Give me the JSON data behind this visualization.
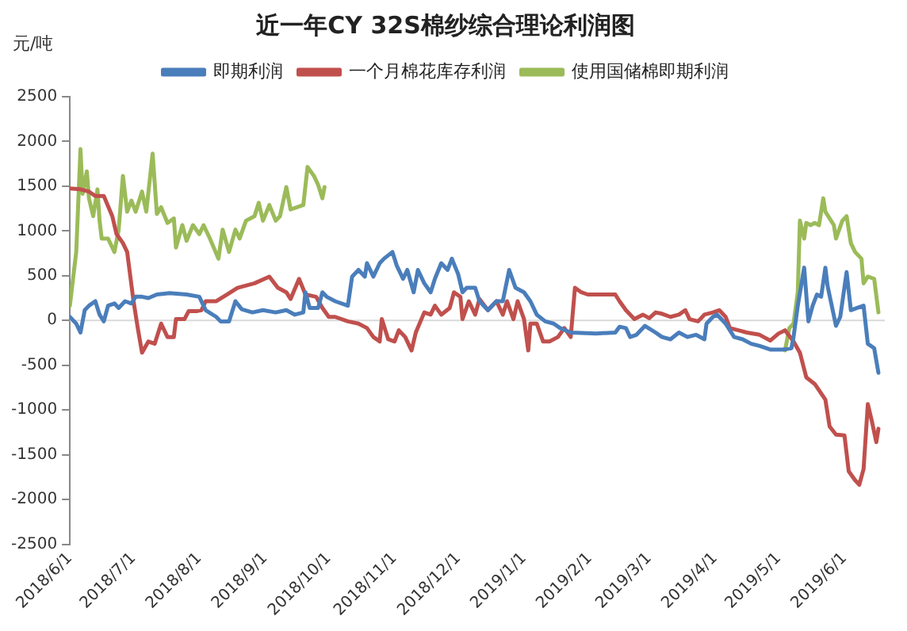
{
  "chart_data": {
    "type": "line",
    "title": "近一年CY 32S棉纱综合理论利润图",
    "ylabel": "元/吨",
    "xlim": [
      "2018-06-01",
      "2019-06-20"
    ],
    "xticks": [
      {
        "value": "2018-06-01",
        "label": "2018/6/1"
      },
      {
        "value": "2018-07-01",
        "label": "2018/7/1"
      },
      {
        "value": "2018-08-01",
        "label": "2018/8/1"
      },
      {
        "value": "2018-09-01",
        "label": "2018/9/1"
      },
      {
        "value": "2018-10-01",
        "label": "2018/10/1"
      },
      {
        "value": "2018-11-01",
        "label": "2018/11/1"
      },
      {
        "value": "2018-12-01",
        "label": "2018/12/1"
      },
      {
        "value": "2019-01-01",
        "label": "2019/1/1"
      },
      {
        "value": "2019-02-01",
        "label": "2019/2/1"
      },
      {
        "value": "2019-03-01",
        "label": "2019/3/1"
      },
      {
        "value": "2019-04-01",
        "label": "2019/4/1"
      },
      {
        "value": "2019-05-01",
        "label": "2019/5/1"
      },
      {
        "value": "2019-06-01",
        "label": "2019/6/1"
      }
    ],
    "ylim": [
      -2500,
      2500
    ],
    "yticks": [
      -2500,
      -2000,
      -1500,
      -1000,
      -500,
      0,
      500,
      1000,
      1500,
      2000,
      2500
    ],
    "grid": false,
    "ref_lines": [
      {
        "axis": "y",
        "value": 0,
        "color": "#d9d9d9"
      }
    ],
    "legend": "top",
    "marker": "none",
    "line_style": "solid",
    "series": [
      {
        "name": "即期利润",
        "color": "#4a7ebb",
        "x": [
          "2018-06-01",
          "2018-06-04",
          "2018-06-06",
          "2018-06-08",
          "2018-06-10",
          "2018-06-13",
          "2018-06-15",
          "2018-06-17",
          "2018-06-19",
          "2018-06-22",
          "2018-06-24",
          "2018-06-27",
          "2018-06-30",
          "2018-07-02",
          "2018-07-05",
          "2018-07-08",
          "2018-07-12",
          "2018-07-18",
          "2018-07-26",
          "2018-08-01",
          "2018-08-04",
          "2018-08-09",
          "2018-08-11",
          "2018-08-15",
          "2018-08-18",
          "2018-08-21",
          "2018-08-26",
          "2018-08-31",
          "2018-09-06",
          "2018-09-11",
          "2018-09-15",
          "2018-09-19",
          "2018-09-20",
          "2018-09-22",
          "2018-09-26",
          "2018-09-28",
          "2018-09-30",
          "2018-10-04",
          "2018-10-10",
          "2018-10-12",
          "2018-10-15",
          "2018-10-18",
          "2018-10-19",
          "2018-10-22",
          "2018-10-25",
          "2018-10-27",
          "2018-10-31",
          "2018-11-02",
          "2018-11-05",
          "2018-11-07",
          "2018-11-10",
          "2018-11-12",
          "2018-11-15",
          "2018-11-18",
          "2018-11-20",
          "2018-11-23",
          "2018-11-26",
          "2018-11-28",
          "2018-12-01",
          "2018-12-03",
          "2018-12-05",
          "2018-12-09",
          "2018-12-11",
          "2018-12-15",
          "2018-12-19",
          "2018-12-22",
          "2018-12-25",
          "2018-12-28",
          "2019-01-01",
          "2019-01-04",
          "2019-01-07",
          "2019-01-11",
          "2019-01-15",
          "2019-01-18",
          "2019-01-23",
          "2019-02-04",
          "2019-02-13",
          "2019-02-15",
          "2019-02-18",
          "2019-02-20",
          "2019-02-23",
          "2019-02-27",
          "2019-03-04",
          "2019-03-07",
          "2019-03-11",
          "2019-03-15",
          "2019-03-19",
          "2019-03-23",
          "2019-03-27",
          "2019-03-28",
          "2019-03-31",
          "2019-04-02",
          "2019-04-06",
          "2019-04-10",
          "2019-04-14",
          "2019-04-18",
          "2019-04-22",
          "2019-04-27",
          "2019-05-03",
          "2019-05-07",
          "2019-05-08",
          "2019-05-10",
          "2019-05-13",
          "2019-05-15",
          "2019-05-17",
          "2019-05-19",
          "2019-05-21",
          "2019-05-23",
          "2019-05-24",
          "2019-05-28",
          "2019-05-30",
          "2019-06-02",
          "2019-06-04",
          "2019-06-07",
          "2019-06-10",
          "2019-06-12",
          "2019-06-15",
          "2019-06-17"
        ],
        "values": [
          40,
          -35,
          -135,
          115,
          165,
          215,
          65,
          -10,
          165,
          190,
          140,
          215,
          190,
          265,
          265,
          250,
          290,
          305,
          290,
          265,
          115,
          40,
          -10,
          -10,
          215,
          125,
          90,
          115,
          90,
          115,
          65,
          90,
          315,
          140,
          140,
          315,
          265,
          215,
          165,
          490,
          565,
          490,
          640,
          490,
          640,
          690,
          765,
          615,
          465,
          565,
          315,
          565,
          415,
          315,
          465,
          640,
          565,
          690,
          515,
          315,
          365,
          365,
          215,
          115,
          215,
          215,
          565,
          365,
          315,
          215,
          65,
          -10,
          -35,
          -85,
          -135,
          -145,
          -135,
          -70,
          -85,
          -185,
          -160,
          -60,
          -135,
          -185,
          -210,
          -135,
          -185,
          -160,
          -210,
          -35,
          40,
          65,
          -35,
          -185,
          -210,
          -260,
          -285,
          -325,
          -325,
          -310,
          -185,
          165,
          590,
          -10,
          165,
          290,
          265,
          590,
          390,
          -60,
          40,
          540,
          115,
          140,
          165,
          -260,
          -310,
          -585
        ]
      },
      {
        "name": "一个月棉花库存利润",
        "color": "#c0504d",
        "x": [
          "2018-06-01",
          "2018-06-06",
          "2018-06-10",
          "2018-06-13",
          "2018-06-17",
          "2018-06-21",
          "2018-06-23",
          "2018-06-26",
          "2018-06-28",
          "2018-07-01",
          "2018-07-03",
          "2018-07-05",
          "2018-07-08",
          "2018-07-11",
          "2018-07-14",
          "2018-07-17",
          "2018-07-20",
          "2018-07-21",
          "2018-07-25",
          "2018-07-27",
          "2018-07-31",
          "2018-08-02",
          "2018-08-04",
          "2018-08-09",
          "2018-08-14",
          "2018-08-19",
          "2018-08-27",
          "2018-09-03",
          "2018-09-07",
          "2018-09-11",
          "2018-09-13",
          "2018-09-17",
          "2018-09-20",
          "2018-09-25",
          "2018-09-28",
          "2018-10-01",
          "2018-10-04",
          "2018-10-10",
          "2018-10-15",
          "2018-10-19",
          "2018-10-22",
          "2018-10-25",
          "2018-10-26",
          "2018-10-29",
          "2018-11-01",
          "2018-11-03",
          "2018-11-06",
          "2018-11-09",
          "2018-11-11",
          "2018-11-15",
          "2018-11-18",
          "2018-11-20",
          "2018-11-23",
          "2018-11-27",
          "2018-11-29",
          "2018-12-02",
          "2018-12-03",
          "2018-12-06",
          "2018-12-09",
          "2018-12-11",
          "2018-12-15",
          "2018-12-19",
          "2018-12-22",
          "2018-12-24",
          "2018-12-27",
          "2018-12-29",
          "2019-01-01",
          "2019-01-03",
          "2019-01-04",
          "2019-01-07",
          "2019-01-10",
          "2019-01-13",
          "2019-01-17",
          "2019-01-20",
          "2019-01-23",
          "2019-01-25",
          "2019-01-28",
          "2019-01-31",
          "2019-02-13",
          "2019-02-15",
          "2019-02-18",
          "2019-02-22",
          "2019-02-26",
          "2019-03-01",
          "2019-03-04",
          "2019-03-07",
          "2019-03-11",
          "2019-03-15",
          "2019-03-18",
          "2019-03-20",
          "2019-03-24",
          "2019-03-27",
          "2019-03-31",
          "2019-04-03",
          "2019-04-06",
          "2019-04-08",
          "2019-04-12",
          "2019-04-16",
          "2019-04-22",
          "2019-04-27",
          "2019-05-01",
          "2019-05-04",
          "2019-05-08",
          "2019-05-11",
          "2019-05-14",
          "2019-05-18",
          "2019-05-23",
          "2019-05-25",
          "2019-05-28",
          "2019-06-01",
          "2019-06-03",
          "2019-06-06",
          "2019-06-08",
          "2019-06-10",
          "2019-06-12",
          "2019-06-14",
          "2019-06-16",
          "2019-06-17"
        ],
        "values": [
          1475,
          1465,
          1440,
          1390,
          1390,
          1165,
          965,
          865,
          765,
          215,
          -85,
          -360,
          -235,
          -260,
          -35,
          -185,
          -185,
          15,
          15,
          105,
          105,
          115,
          215,
          215,
          290,
          365,
          415,
          490,
          365,
          315,
          240,
          465,
          290,
          265,
          140,
          40,
          40,
          -10,
          -35,
          -85,
          -185,
          -235,
          15,
          -210,
          -235,
          -110,
          -185,
          -335,
          -135,
          90,
          65,
          165,
          65,
          140,
          315,
          265,
          15,
          215,
          65,
          240,
          115,
          215,
          65,
          215,
          15,
          215,
          15,
          -335,
          -35,
          -35,
          -235,
          -235,
          -185,
          -85,
          -185,
          365,
          315,
          290,
          290,
          215,
          115,
          15,
          65,
          25,
          90,
          75,
          40,
          65,
          115,
          15,
          -10,
          65,
          90,
          115,
          40,
          -85,
          -110,
          -135,
          -160,
          -225,
          -145,
          -110,
          -235,
          -360,
          -635,
          -710,
          -885,
          -1185,
          -1275,
          -1285,
          -1685,
          -1785,
          -1835,
          -1660,
          -935,
          -1135,
          -1360,
          -1210
        ]
      },
      {
        "name": "使用国储棉即期利润",
        "color": "#9bbb59",
        "x": [
          "2018-06-01",
          "2018-06-04",
          "2018-06-06",
          "2018-06-07",
          "2018-06-09",
          "2018-06-10",
          "2018-06-12",
          "2018-06-14",
          "2018-06-15",
          "2018-06-16",
          "2018-06-19",
          "2018-06-22",
          "2018-06-24",
          "2018-06-26",
          "2018-06-28",
          "2018-06-30",
          "2018-07-02",
          "2018-07-05",
          "2018-07-07",
          "2018-07-10",
          "2018-07-12",
          "2018-07-14",
          "2018-07-17",
          "2018-07-20",
          "2018-07-21",
          "2018-07-24",
          "2018-07-26",
          "2018-07-29",
          "2018-08-01",
          "2018-08-03",
          "2018-08-06",
          "2018-08-10",
          "2018-08-12",
          "2018-08-15",
          "2018-08-18",
          "2018-08-20",
          "2018-08-23",
          "2018-08-27",
          "2018-08-29",
          "2018-08-31",
          "2018-09-03",
          "2018-09-06",
          "2018-09-08",
          "2018-09-11",
          "2018-09-13",
          "2018-09-19",
          "2018-09-21",
          "2018-09-24",
          "2018-09-26",
          "2018-09-28",
          "2018-09-29",
          "2018-12-01",
          "2019-05-04",
          "2019-05-06",
          "2019-05-08",
          "2019-05-10",
          "2019-05-11",
          "2019-05-13",
          "2019-05-14",
          "2019-05-16",
          "2019-05-18",
          "2019-05-20",
          "2019-05-22",
          "2019-05-23",
          "2019-05-27",
          "2019-05-28",
          "2019-05-31",
          "2019-06-02",
          "2019-06-04",
          "2019-06-06",
          "2019-06-09",
          "2019-06-10",
          "2019-06-12",
          "2019-06-15",
          "2019-06-17"
        ],
        "values": [
          165,
          765,
          1915,
          1415,
          1665,
          1365,
          1165,
          1465,
          1115,
          915,
          915,
          765,
          1015,
          1615,
          1215,
          1340,
          1215,
          1440,
          1215,
          1865,
          1190,
          1265,
          1090,
          1140,
          815,
          1065,
          890,
          1065,
          965,
          1065,
          915,
          690,
          1015,
          765,
          1015,
          915,
          1115,
          1165,
          1315,
          1115,
          1290,
          1115,
          1165,
          1490,
          1240,
          1290,
          1715,
          1615,
          1515,
          1365,
          1490,
          null,
          -335,
          -85,
          -35,
          315,
          1115,
          915,
          1090,
          1065,
          1090,
          1065,
          1365,
          1215,
          1065,
          915,
          1115,
          1165,
          865,
          765,
          690,
          415,
          490,
          465,
          90
        ]
      }
    ]
  }
}
